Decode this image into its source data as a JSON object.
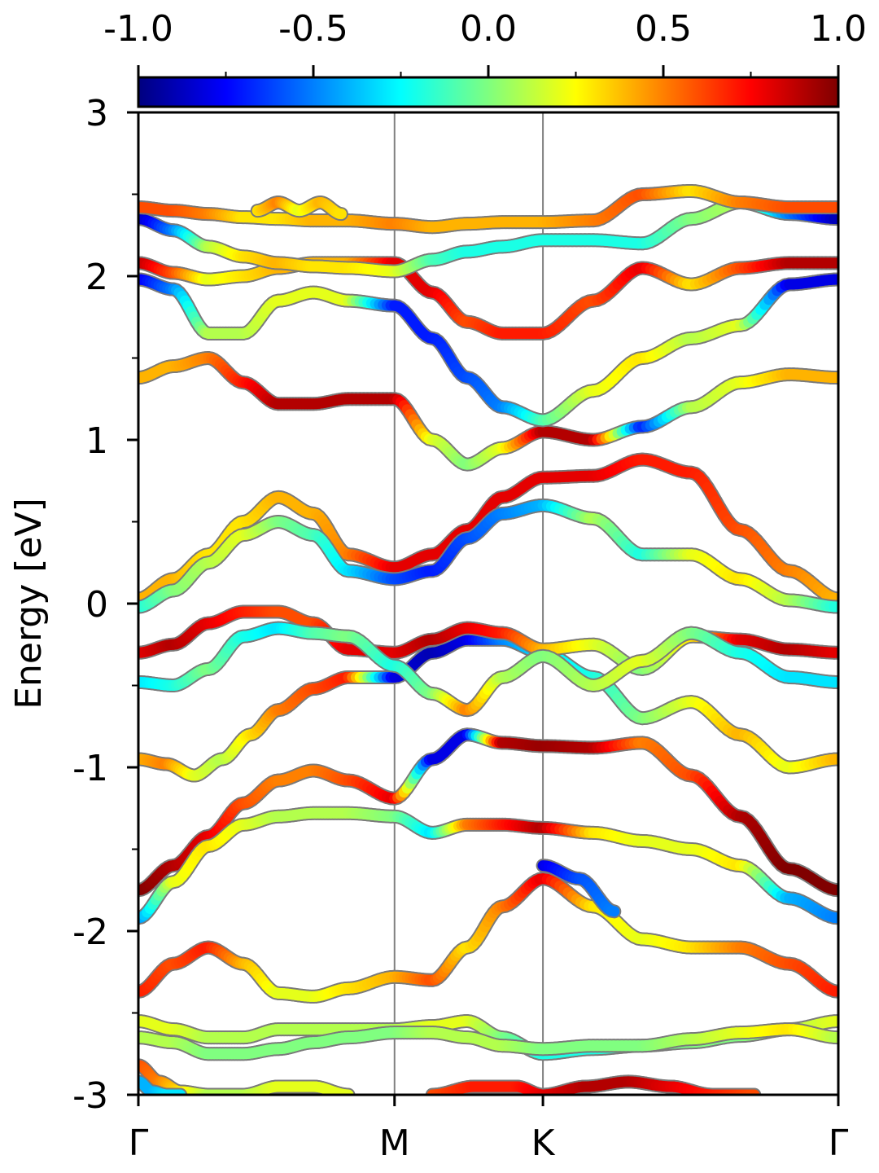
{
  "chart_data": {
    "type": "line",
    "title": "",
    "ylabel": "Energy [eV]",
    "xlabel": "",
    "ylim": [
      -3,
      3
    ],
    "y_ticks": [
      3,
      2,
      1,
      0,
      -1,
      -2,
      -3
    ],
    "y_tick_labels": [
      "3",
      "2",
      "1",
      "0",
      "-1",
      "-2",
      "-3"
    ],
    "y_minor_step": 0.5,
    "x_ticks": [
      {
        "label": "Γ",
        "pos": 0.0
      },
      {
        "label": "M",
        "pos": 0.366
      },
      {
        "label": "K",
        "pos": 0.578
      },
      {
        "label": "Γ",
        "pos": 1.0
      }
    ],
    "colorbar": {
      "range": [
        -1.0,
        1.0
      ],
      "tick_values": [
        -1.0,
        -0.5,
        0.0,
        0.5,
        1.0
      ],
      "tick_labels": [
        "-1.0",
        "-0.5",
        "0.0",
        "0.5",
        "1.0"
      ],
      "colormap": "jet",
      "placement": "top"
    },
    "colors": {
      "segment_line": "#808080",
      "frame": "#000000"
    },
    "series": [
      {
        "x": [
          0.0,
          0.05,
          0.1,
          0.15,
          0.2,
          0.25,
          0.3,
          0.366,
          0.42,
          0.47,
          0.52,
          0.578,
          0.65,
          0.72,
          0.79,
          0.86,
          0.93,
          1.0
        ],
        "y": [
          -1.75,
          -1.6,
          -1.42,
          -1.22,
          -1.08,
          -1.02,
          -1.08,
          -1.19,
          -0.95,
          -0.8,
          -0.85,
          -0.87,
          -0.88,
          -0.85,
          -1.05,
          -1.3,
          -1.62,
          -1.75
        ],
        "c": [
          1.0,
          0.9,
          0.8,
          0.6,
          0.5,
          0.5,
          0.6,
          0.8,
          -0.8,
          -0.8,
          0.9,
          0.95,
          0.9,
          0.5,
          0.6,
          0.9,
          1.0,
          1.0
        ]
      },
      {
        "x": [
          0.0,
          0.05,
          0.1,
          0.15,
          0.2,
          0.25,
          0.3,
          0.366,
          0.42,
          0.47,
          0.52,
          0.578,
          0.65,
          0.72,
          0.79,
          0.86,
          0.93,
          1.0
        ],
        "y": [
          -1.92,
          -1.7,
          -1.48,
          -1.35,
          -1.3,
          -1.28,
          -1.28,
          -1.3,
          -1.4,
          -1.35,
          -1.35,
          -1.37,
          -1.4,
          -1.45,
          -1.5,
          -1.6,
          -1.8,
          -1.92
        ],
        "c": [
          -0.5,
          0.2,
          0.3,
          0.2,
          0.1,
          0.1,
          0.1,
          0.0,
          -0.3,
          0.5,
          0.7,
          0.9,
          0.3,
          0.2,
          0.2,
          0.3,
          -0.4,
          -0.5
        ]
      },
      {
        "x": [
          0.0,
          0.04,
          0.08,
          0.12,
          0.16,
          0.2,
          0.25,
          0.3,
          0.366,
          0.42,
          0.47,
          0.52,
          0.578,
          0.65,
          0.72,
          0.79,
          0.86,
          0.93,
          1.0
        ],
        "y": [
          -0.95,
          -0.98,
          -1.05,
          -0.95,
          -0.8,
          -0.65,
          -0.52,
          -0.45,
          -0.45,
          -0.3,
          -0.22,
          -0.22,
          -0.3,
          -0.45,
          -0.7,
          -0.6,
          -0.8,
          -1.0,
          -0.95
        ],
        "c": [
          0.4,
          0.5,
          0.2,
          0.1,
          0.3,
          0.5,
          0.6,
          0.7,
          -0.8,
          -0.9,
          -0.8,
          -0.5,
          -0.3,
          -0.2,
          0.0,
          0.2,
          0.4,
          0.2,
          0.4
        ]
      },
      {
        "x": [
          0.0,
          0.05,
          0.1,
          0.15,
          0.2,
          0.25,
          0.3,
          0.366,
          0.42,
          0.47,
          0.52,
          0.578,
          0.65,
          0.72,
          0.79,
          0.86,
          0.93,
          1.0
        ],
        "y": [
          -0.3,
          -0.25,
          -0.12,
          -0.05,
          -0.05,
          -0.12,
          -0.28,
          -0.3,
          -0.22,
          -0.15,
          -0.18,
          -0.28,
          -0.25,
          -0.4,
          -0.2,
          -0.22,
          -0.28,
          -0.3
        ],
        "c": [
          0.8,
          0.9,
          0.8,
          0.7,
          0.6,
          0.6,
          0.8,
          0.8,
          0.9,
          0.8,
          0.7,
          0.4,
          0.2,
          0.0,
          0.3,
          0.8,
          0.9,
          0.8
        ]
      },
      {
        "x": [
          0.0,
          0.05,
          0.1,
          0.15,
          0.2,
          0.25,
          0.3,
          0.366,
          0.42,
          0.47,
          0.52,
          0.578,
          0.65,
          0.72,
          0.79,
          0.86,
          0.93,
          1.0
        ],
        "y": [
          -0.48,
          -0.5,
          -0.4,
          -0.2,
          -0.15,
          -0.18,
          -0.2,
          -0.38,
          -0.55,
          -0.65,
          -0.45,
          -0.32,
          -0.5,
          -0.35,
          -0.18,
          -0.3,
          -0.45,
          -0.48
        ],
        "c": [
          -0.3,
          -0.2,
          0.0,
          -0.2,
          -0.3,
          -0.1,
          0.0,
          -0.2,
          0.0,
          0.5,
          0.1,
          0.0,
          0.1,
          0.2,
          0.0,
          -0.2,
          -0.3,
          -0.3
        ]
      },
      {
        "x": [
          0.0,
          0.05,
          0.1,
          0.15,
          0.2,
          0.25,
          0.3,
          0.366,
          0.42,
          0.47,
          0.52,
          0.578,
          0.65,
          0.72,
          0.79,
          0.86,
          0.93,
          1.0
        ],
        "y": [
          0.03,
          0.15,
          0.3,
          0.5,
          0.65,
          0.55,
          0.3,
          0.22,
          0.3,
          0.45,
          0.65,
          0.77,
          0.78,
          0.88,
          0.8,
          0.45,
          0.2,
          0.03
        ],
        "c": [
          0.4,
          0.4,
          0.3,
          0.3,
          0.4,
          0.4,
          0.5,
          0.8,
          0.8,
          0.8,
          0.8,
          0.8,
          0.8,
          0.7,
          0.7,
          0.6,
          0.5,
          0.4
        ]
      },
      {
        "x": [
          0.0,
          0.05,
          0.1,
          0.15,
          0.2,
          0.25,
          0.3,
          0.366,
          0.42,
          0.47,
          0.52,
          0.578,
          0.65,
          0.72,
          0.79,
          0.86,
          0.93,
          1.0
        ],
        "y": [
          -0.02,
          0.08,
          0.25,
          0.42,
          0.5,
          0.42,
          0.2,
          0.15,
          0.2,
          0.4,
          0.55,
          0.6,
          0.52,
          0.3,
          0.3,
          0.15,
          0.02,
          -0.02
        ],
        "c": [
          -0.2,
          0.0,
          0.1,
          0.2,
          0.0,
          -0.1,
          -0.3,
          -0.6,
          -0.7,
          -0.6,
          -0.5,
          -0.4,
          0.1,
          -0.2,
          0.2,
          0.3,
          0.1,
          -0.2
        ]
      },
      {
        "x": [
          0.0,
          0.05,
          0.1,
          0.15,
          0.2,
          0.25,
          0.3,
          0.366,
          0.42,
          0.47,
          0.52,
          0.578,
          0.65,
          0.72,
          0.79,
          0.86,
          0.93,
          1.0
        ],
        "y": [
          1.38,
          1.45,
          1.5,
          1.35,
          1.22,
          1.22,
          1.25,
          1.25,
          1.0,
          0.85,
          0.95,
          1.05,
          1.0,
          1.08,
          1.2,
          1.35,
          1.4,
          1.38
        ],
        "c": [
          0.4,
          0.4,
          0.5,
          0.7,
          0.9,
          0.9,
          0.9,
          0.9,
          0.2,
          0.0,
          0.2,
          0.9,
          0.9,
          -0.7,
          0.1,
          0.2,
          0.4,
          0.4
        ]
      },
      {
        "x": [
          0.0,
          0.05,
          0.1,
          0.15,
          0.2,
          0.25,
          0.3,
          0.366,
          0.42,
          0.47,
          0.52,
          0.578,
          0.65,
          0.72,
          0.79,
          0.86,
          0.93,
          1.0
        ],
        "y": [
          1.98,
          1.92,
          1.65,
          1.65,
          1.85,
          1.9,
          1.85,
          1.82,
          1.62,
          1.38,
          1.2,
          1.12,
          1.3,
          1.5,
          1.62,
          1.7,
          1.95,
          1.98
        ],
        "c": [
          -0.8,
          -0.5,
          0.1,
          0.1,
          0.2,
          0.2,
          0.2,
          -0.7,
          -0.7,
          -0.6,
          -0.5,
          -0.1,
          0.2,
          0.3,
          0.1,
          0.2,
          -0.8,
          -0.8
        ]
      },
      {
        "x": [
          0.0,
          0.05,
          0.1,
          0.15,
          0.2,
          0.25,
          0.3,
          0.366,
          0.42,
          0.47,
          0.52,
          0.578,
          0.65,
          0.72,
          0.79,
          0.86,
          0.93,
          1.0
        ],
        "y": [
          2.08,
          2.02,
          1.98,
          2.0,
          2.05,
          2.08,
          2.08,
          2.08,
          1.9,
          1.72,
          1.65,
          1.65,
          1.85,
          2.05,
          1.95,
          2.05,
          2.08,
          2.08
        ],
        "c": [
          0.9,
          0.6,
          0.2,
          0.3,
          0.4,
          0.4,
          0.4,
          0.8,
          0.8,
          0.6,
          0.7,
          0.7,
          0.6,
          0.8,
          0.3,
          0.6,
          0.9,
          0.9
        ]
      },
      {
        "x": [
          0.0,
          0.05,
          0.1,
          0.15,
          0.2,
          0.25,
          0.3,
          0.366,
          0.42,
          0.47,
          0.52,
          0.578,
          0.65,
          0.72,
          0.79,
          0.86,
          0.93,
          1.0
        ],
        "y": [
          2.35,
          2.28,
          2.18,
          2.12,
          2.08,
          2.06,
          2.05,
          2.03,
          2.1,
          2.15,
          2.18,
          2.22,
          2.22,
          2.2,
          2.35,
          2.45,
          2.38,
          2.35
        ],
        "c": [
          -0.9,
          -0.5,
          0.1,
          0.3,
          0.4,
          0.3,
          0.3,
          0.2,
          -0.1,
          -0.2,
          -0.2,
          -0.2,
          -0.2,
          -0.2,
          0.0,
          0.1,
          -0.5,
          -0.9
        ]
      },
      {
        "x": [
          0.0,
          0.05,
          0.1,
          0.15,
          0.2,
          0.25,
          0.3,
          0.366,
          0.42,
          0.47,
          0.52,
          0.578,
          0.65,
          0.72,
          0.79,
          0.86,
          0.93,
          1.0
        ],
        "y": [
          2.42,
          2.4,
          2.38,
          2.36,
          2.35,
          2.34,
          2.34,
          2.32,
          2.3,
          2.32,
          2.33,
          2.33,
          2.34,
          2.5,
          2.52,
          2.45,
          2.42,
          2.42
        ],
        "c": [
          0.6,
          0.6,
          0.5,
          0.3,
          0.3,
          0.4,
          0.4,
          0.5,
          0.4,
          0.4,
          0.4,
          0.4,
          0.5,
          0.6,
          0.3,
          0.5,
          0.6,
          0.6
        ]
      },
      {
        "x": [
          0.0,
          0.05,
          0.1,
          0.15,
          0.2,
          0.25,
          0.3,
          0.366,
          0.42,
          0.47,
          0.52,
          0.578,
          0.65,
          0.72,
          0.79,
          0.86,
          0.93,
          1.0
        ],
        "y": [
          -2.37,
          -2.2,
          -2.1,
          -2.2,
          -2.38,
          -2.4,
          -2.35,
          -2.28,
          -2.3,
          -2.1,
          -1.85,
          -1.68,
          -1.85,
          -2.05,
          -2.1,
          -2.1,
          -2.2,
          -2.37
        ],
        "c": [
          0.7,
          0.6,
          0.7,
          0.4,
          0.2,
          0.2,
          0.3,
          0.4,
          0.6,
          0.3,
          0.5,
          0.8,
          0.3,
          0.2,
          0.3,
          0.5,
          0.6,
          0.7
        ]
      },
      {
        "x": [
          0.0,
          0.05,
          0.1,
          0.15,
          0.2,
          0.25,
          0.3,
          0.366,
          0.42,
          0.47,
          0.52,
          0.578,
          0.65,
          0.72,
          0.79,
          0.86,
          0.93,
          1.0
        ],
        "y": [
          -2.55,
          -2.6,
          -2.65,
          -2.65,
          -2.6,
          -2.6,
          -2.6,
          -2.6,
          -2.58,
          -2.55,
          -2.65,
          -2.75,
          -2.72,
          -2.7,
          -2.68,
          -2.64,
          -2.6,
          -2.55
        ],
        "c": [
          0.2,
          0.2,
          0.1,
          0.1,
          0.1,
          0.1,
          0.1,
          0.1,
          0.2,
          0.2,
          0.0,
          -0.2,
          -0.2,
          -0.1,
          0.0,
          0.0,
          0.1,
          0.2
        ]
      },
      {
        "x": [
          0.0,
          0.05,
          0.1,
          0.15,
          0.2,
          0.25,
          0.3,
          0.366,
          0.42,
          0.47,
          0.52,
          0.578,
          0.65,
          0.72,
          0.79,
          0.86,
          0.93,
          1.0
        ],
        "y": [
          -2.65,
          -2.68,
          -2.75,
          -2.75,
          -2.72,
          -2.68,
          -2.65,
          -2.62,
          -2.62,
          -2.65,
          -2.7,
          -2.72,
          -2.7,
          -2.7,
          -2.66,
          -2.62,
          -2.6,
          -2.65
        ],
        "c": [
          0.1,
          0.1,
          0.0,
          0.0,
          0.0,
          0.0,
          0.0,
          0.0,
          0.1,
          0.1,
          0.1,
          0.0,
          0.0,
          0.0,
          0.1,
          0.2,
          0.3,
          0.1
        ]
      },
      {
        "x": [
          0.0,
          0.03,
          0.06,
          0.1,
          0.15,
          0.2,
          0.25,
          0.3
        ],
        "y": [
          -2.82,
          -2.92,
          -2.98,
          -3.0,
          -3.0,
          -2.95,
          -2.95,
          -3.0
        ],
        "c": [
          0.6,
          0.5,
          0.3,
          0.1,
          0.1,
          0.2,
          0.2,
          0.2
        ]
      },
      {
        "x": [
          0.0,
          0.02,
          0.04,
          0.06
        ],
        "y": [
          -2.92,
          -2.98,
          -3.0,
          -3.0
        ],
        "c": [
          -0.4,
          -0.4,
          -0.3,
          -0.3
        ]
      },
      {
        "x": [
          0.42,
          0.48,
          0.54,
          0.578,
          0.64,
          0.7,
          0.76,
          0.82,
          0.88
        ],
        "y": [
          -3.0,
          -2.95,
          -2.95,
          -3.0,
          -2.95,
          -2.92,
          -2.95,
          -3.0,
          -3.0
        ],
        "c": [
          0.6,
          0.7,
          0.7,
          0.8,
          0.9,
          0.9,
          0.8,
          0.7,
          0.6
        ]
      },
      {
        "x": [
          0.578,
          0.63,
          0.68
        ],
        "y": [
          -1.6,
          -1.68,
          -1.88
        ],
        "c": [
          -0.8,
          -0.6,
          -0.5
        ]
      },
      {
        "x": [
          0.17,
          0.2,
          0.23,
          0.26,
          0.29
        ],
        "y": [
          2.4,
          2.45,
          2.4,
          2.45,
          2.38
        ],
        "c": [
          0.3,
          0.5,
          0.2,
          0.4,
          0.3
        ]
      }
    ]
  }
}
